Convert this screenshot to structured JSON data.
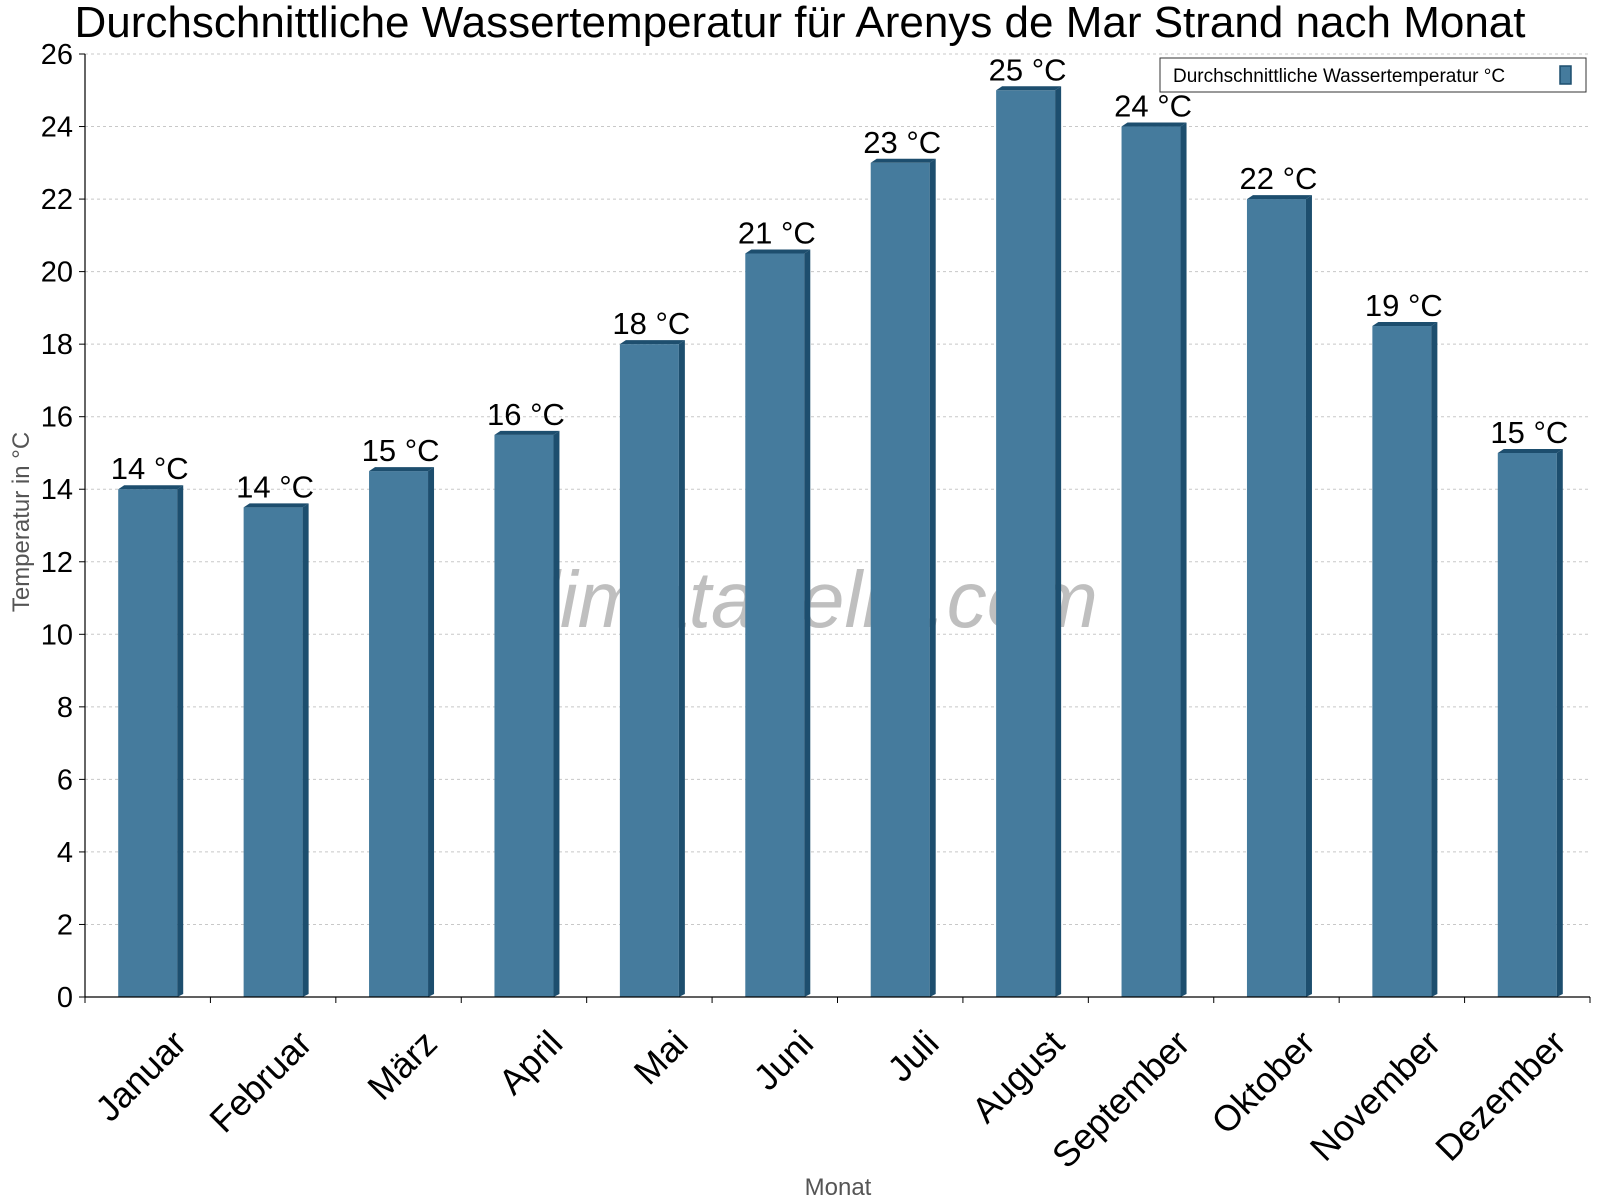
{
  "chart_data": {
    "type": "bar",
    "title": "Durchschnittliche Wassertemperatur für Arenys de Mar Strand nach Monat",
    "xlabel": "Monat",
    "ylabel": "Temperatur in °C",
    "categories": [
      "Januar",
      "Februar",
      "März",
      "April",
      "Mai",
      "Juni",
      "Juli",
      "August",
      "September",
      "Oktober",
      "November",
      "Dezember"
    ],
    "series": [
      {
        "name": "Durchschnittliche Wassertemperatur °C",
        "values": [
          14,
          13.5,
          14.5,
          15.5,
          18,
          20.5,
          23,
          25,
          24,
          22,
          18.5,
          15
        ],
        "labels": [
          "14 °C",
          "14 °C",
          "15 °C",
          "16 °C",
          "18 °C",
          "21 °C",
          "23 °C",
          "25 °C",
          "24 °C",
          "22 °C",
          "19 °C",
          "15 °C"
        ]
      }
    ],
    "ylim": [
      0,
      26
    ],
    "yticks": [
      0,
      2,
      4,
      6,
      8,
      10,
      12,
      14,
      16,
      18,
      20,
      22,
      24,
      26
    ],
    "grid": true,
    "legend": "top-right",
    "colors": {
      "bar": "#457b9d",
      "bar_side": "#1d4e6e",
      "bar_top": "#1d4e6e",
      "grid": "#c8c8c8"
    }
  },
  "watermark": "klimatabelle.com"
}
